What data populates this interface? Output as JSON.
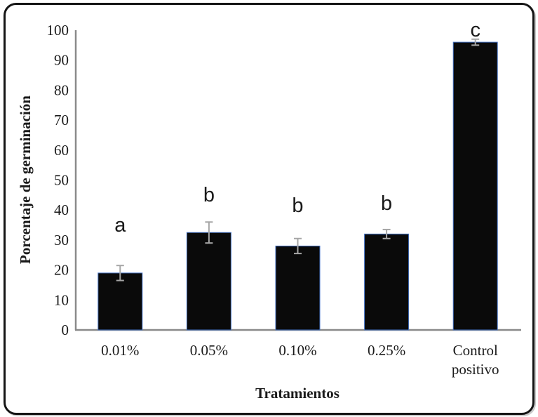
{
  "chart_data": {
    "type": "bar",
    "title": "",
    "categories": [
      "0.01%",
      "0.05%",
      "0.10%",
      "0.25%",
      "Control\npositivo"
    ],
    "values": [
      19,
      32.5,
      28,
      32,
      96
    ],
    "error_bars": [
      2.5,
      3.5,
      2.5,
      1.5,
      1
    ],
    "significance_letters": [
      "a",
      "b",
      "b",
      "b",
      "c"
    ],
    "xlabel": "Tratamientos",
    "ylabel": "Porcentaje de germinación",
    "ylim": [
      0,
      100
    ],
    "yticks": [
      0,
      10,
      20,
      30,
      40,
      50,
      60,
      70,
      80,
      90,
      100
    ],
    "grid": false,
    "legend": false,
    "colors": {
      "bar_fill": "#0a0a0a",
      "bar_outline": "#4472c4",
      "error_bar": "#a6a6a6",
      "axis_line": "#8a8a8a",
      "text": "#1a1a1a",
      "frame_border": "#151515"
    }
  }
}
